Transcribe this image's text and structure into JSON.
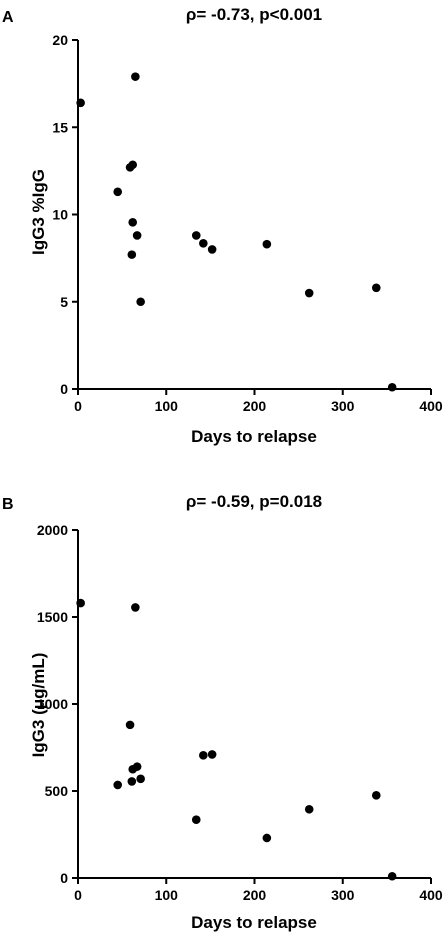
{
  "chart_data": [
    {
      "type": "scatter",
      "panel_label": "A",
      "title": "ρ= -0.73, p<0.001",
      "xlabel": "Days to relapse",
      "ylabel": "IgG3 %IgG",
      "xlim": [
        0,
        400
      ],
      "ylim": [
        0,
        20
      ],
      "xticks": [
        0,
        100,
        200,
        300,
        400
      ],
      "yticks": [
        0,
        5,
        10,
        15,
        20
      ],
      "grid": false,
      "marker_color": "#000000",
      "points": [
        {
          "x": 3,
          "y": 16.4
        },
        {
          "x": 45,
          "y": 11.3
        },
        {
          "x": 59,
          "y": 12.7
        },
        {
          "x": 62,
          "y": 12.85
        },
        {
          "x": 61,
          "y": 7.7
        },
        {
          "x": 62,
          "y": 9.55
        },
        {
          "x": 65,
          "y": 17.9
        },
        {
          "x": 67,
          "y": 8.8
        },
        {
          "x": 71,
          "y": 5.0
        },
        {
          "x": 134,
          "y": 8.8
        },
        {
          "x": 142,
          "y": 8.35
        },
        {
          "x": 152,
          "y": 8.0
        },
        {
          "x": 214,
          "y": 8.3
        },
        {
          "x": 262,
          "y": 5.5
        },
        {
          "x": 338,
          "y": 5.8
        },
        {
          "x": 356,
          "y": 0.1
        }
      ]
    },
    {
      "type": "scatter",
      "panel_label": "B",
      "title": "ρ= -0.59, p=0.018",
      "xlabel": "Days to relapse",
      "ylabel": "IgG3 (μg/mL)",
      "xlim": [
        0,
        400
      ],
      "ylim": [
        0,
        2000
      ],
      "xticks": [
        0,
        100,
        200,
        300,
        400
      ],
      "yticks": [
        0,
        500,
        1000,
        1500,
        2000
      ],
      "grid": false,
      "marker_color": "#000000",
      "points": [
        {
          "x": 3,
          "y": 1580
        },
        {
          "x": 45,
          "y": 535
        },
        {
          "x": 59,
          "y": 880
        },
        {
          "x": 61,
          "y": 555
        },
        {
          "x": 62,
          "y": 625
        },
        {
          "x": 65,
          "y": 1555
        },
        {
          "x": 67,
          "y": 640
        },
        {
          "x": 71,
          "y": 570
        },
        {
          "x": 134,
          "y": 335
        },
        {
          "x": 142,
          "y": 705
        },
        {
          "x": 152,
          "y": 710
        },
        {
          "x": 214,
          "y": 230
        },
        {
          "x": 262,
          "y": 395
        },
        {
          "x": 338,
          "y": 475
        },
        {
          "x": 356,
          "y": 10
        }
      ]
    }
  ]
}
